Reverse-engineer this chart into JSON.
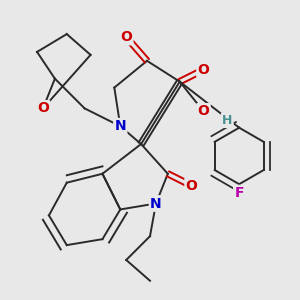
{
  "background_color": "#e8e8e8",
  "bond_color": "#2a2a2a",
  "atom_colors": {
    "O": "#cc0000",
    "N": "#0000cc",
    "F": "#bb00aa",
    "H": "#4a9090"
  },
  "figsize": [
    3.0,
    3.0
  ],
  "dpi": 100,
  "xlim": [
    0.0,
    1.0
  ],
  "ylim": [
    0.0,
    1.0
  ]
}
